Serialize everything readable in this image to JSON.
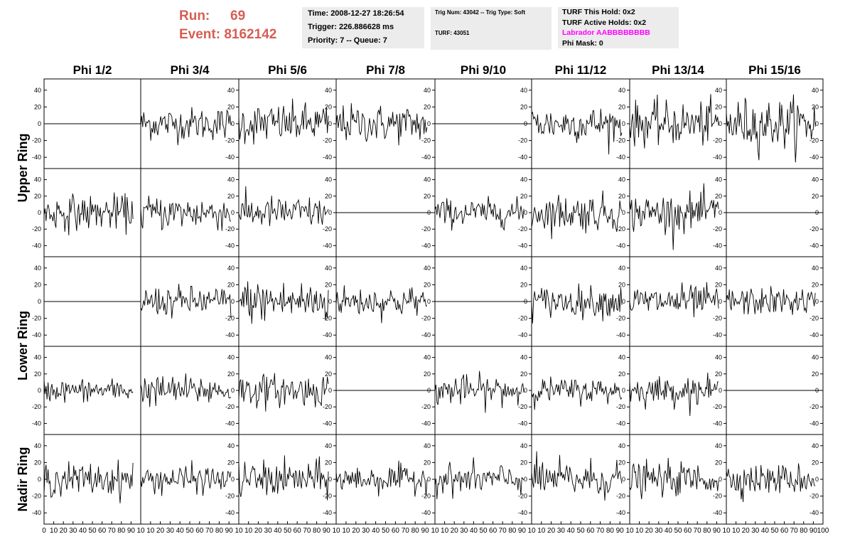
{
  "header": {
    "run_label": "Run:",
    "run_value": "69",
    "event_label": "Event:",
    "event_value": "8162142",
    "time": "Time: 2008-12-27 18:26:54",
    "trigger": "Trigger: 226.886628 ms",
    "priority": "Priority: 7 -- Queue: 7",
    "trig_num": "Trig Num: 43042 -- Trig Type: Soft",
    "turf_id": "TURF: 43051",
    "turf_this_hold": "TURF This Hold: 0x2",
    "turf_active_holds": "TURF Active Holds: 0x2",
    "labrador": "Labrador AABBBBBBBB",
    "phi_mask": "Phi Mask: 0"
  },
  "colors": {
    "header_red": "#d65e55",
    "labrador_magenta": "#ff00ff",
    "info_bg": "#ececec",
    "trace": "#000000"
  },
  "chart_data": {
    "type": "line",
    "layout": "grid of 5 rows x 8 columns of waveform panels",
    "column_labels": [
      "Phi 1/2",
      "Phi 3/4",
      "Phi 5/6",
      "Phi 7/8",
      "Phi 9/10",
      "Phi 11/12",
      "Phi 13/14",
      "Phi 15/16"
    ],
    "row_groups": [
      {
        "label": "Upper Ring",
        "rows": [
          0,
          1
        ]
      },
      {
        "label": "Lower Ring",
        "rows": [
          2,
          3
        ]
      },
      {
        "label": "Nadir Ring",
        "rows": [
          4
        ]
      }
    ],
    "xlim": [
      0,
      100
    ],
    "ylim": [
      -50,
      50
    ],
    "x_ticks": [
      0,
      10,
      20,
      30,
      40,
      50,
      60,
      70,
      80,
      90,
      100
    ],
    "y_ticks": [
      -40,
      -20,
      0,
      20,
      40
    ],
    "panels_flat_zero": [
      [
        0,
        0
      ],
      [
        0,
        4
      ],
      [
        1,
        3
      ],
      [
        1,
        7
      ],
      [
        2,
        0
      ],
      [
        2,
        4
      ],
      [
        3,
        3
      ],
      [
        3,
        7
      ]
    ],
    "amplitudes": [
      [
        0,
        13,
        16,
        15,
        0,
        14,
        17,
        20
      ],
      [
        14,
        14,
        13,
        0,
        11,
        15,
        15,
        0
      ],
      [
        0,
        12,
        17,
        12,
        0,
        12,
        13,
        11
      ],
      [
        9,
        12,
        13,
        0,
        12,
        10,
        11,
        0
      ],
      [
        13,
        11,
        14,
        11,
        12,
        15,
        13,
        12
      ]
    ]
  }
}
